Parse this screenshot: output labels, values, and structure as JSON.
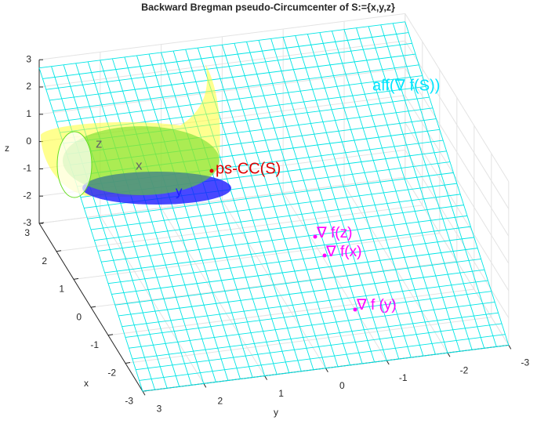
{
  "chart_data": {
    "type": "surface3d",
    "title": "Backward Bregman pseudo-Circumcenter of S:={x,y,z}",
    "x_label": "x",
    "y_label": "y",
    "z_label": "z",
    "xlim": [
      -3,
      3
    ],
    "ylim": [
      -3,
      3
    ],
    "zlim": [
      -3,
      3
    ],
    "xticks": [
      -3,
      -2,
      -1,
      0,
      1,
      2,
      3
    ],
    "yticks": [
      -3,
      -2,
      -1,
      0,
      1,
      2,
      3
    ],
    "zticks": [
      -3,
      -2,
      -1,
      0,
      1,
      2,
      3
    ],
    "plane_color": "#00e5e5",
    "annotations": [
      {
        "text": "x",
        "color": "#666666"
      },
      {
        "text": "z",
        "color": "#666666"
      },
      {
        "text": "y",
        "color": "#1a1aff"
      },
      {
        "text": "ps-CC(S)",
        "color": "#e00000"
      },
      {
        "text": "aff(∇ f(S))",
        "color": "#00e5ff"
      },
      {
        "text": "∇ f(z)",
        "color": "#ff00ff"
      },
      {
        "text": "∇ f(x)",
        "color": "#ff00ff"
      },
      {
        "text": "∇ f (y)",
        "color": "#ff00ff"
      }
    ]
  }
}
